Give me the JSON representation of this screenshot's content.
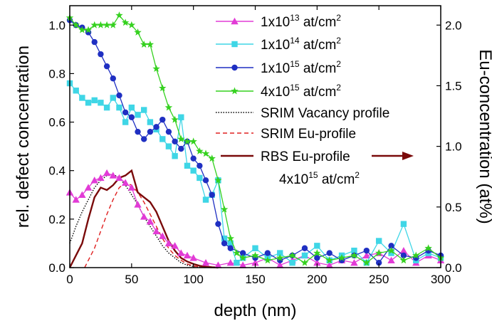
{
  "chart_data": {
    "type": "scatter",
    "xlabel": "depth (nm)",
    "ylabel": "rel. defect concentration",
    "y2label": "Eu-concentration (at%)",
    "xlim": [
      0,
      300
    ],
    "ylim": [
      0,
      1.08
    ],
    "y2lim": [
      0,
      2.16
    ],
    "xticks": [
      "0",
      "50",
      "100",
      "150",
      "200",
      "250",
      "300"
    ],
    "yticks": [
      "0.0",
      "0.2",
      "0.4",
      "0.6",
      "0.8",
      "1.0"
    ],
    "y2ticks": [
      "0.0",
      "0.5",
      "1.0",
      "1.5",
      "2.0"
    ],
    "legend_position": "top-right",
    "series": [
      {
        "name_main": "1x10",
        "name_exp": "13",
        "name_unit": " at/cm",
        "name_unit_exp": "2",
        "color": "#e23bd6",
        "marker": "triangle",
        "x": [
          0,
          5,
          10,
          15,
          20,
          25,
          30,
          35,
          40,
          45,
          50,
          55,
          60,
          65,
          70,
          75,
          80,
          85,
          90,
          95,
          100,
          110,
          120,
          130,
          140,
          150,
          160,
          170,
          180,
          190,
          200,
          210,
          220,
          230,
          240,
          250,
          260,
          270,
          280,
          290,
          300
        ],
        "y": [
          0.31,
          0.28,
          0.3,
          0.33,
          0.36,
          0.37,
          0.39,
          0.38,
          0.37,
          0.35,
          0.33,
          0.26,
          0.21,
          0.19,
          0.15,
          0.13,
          0.1,
          0.09,
          0.06,
          0.05,
          0.04,
          0.02,
          0.01,
          0.02,
          0.01,
          0.02,
          0.04,
          0.01,
          0.03,
          0.05,
          0.02,
          0.01,
          0.03,
          0.02,
          0.05,
          0.06,
          0.03,
          0.07,
          0.02,
          0.05,
          0.03
        ]
      },
      {
        "name_main": "1x10",
        "name_exp": "14",
        "name_unit": " at/cm",
        "name_unit_exp": "2",
        "color": "#3fd6e6",
        "marker": "square",
        "x": [
          0,
          5,
          10,
          15,
          20,
          25,
          30,
          35,
          40,
          45,
          50,
          55,
          60,
          65,
          70,
          75,
          80,
          85,
          90,
          95,
          100,
          105,
          110,
          115,
          120,
          125,
          130,
          135,
          140,
          150,
          160,
          170,
          180,
          190,
          200,
          210,
          220,
          230,
          240,
          250,
          260,
          270,
          280,
          290,
          300
        ],
        "y": [
          0.76,
          0.73,
          0.7,
          0.68,
          0.69,
          0.68,
          0.66,
          0.7,
          0.66,
          0.6,
          0.66,
          0.63,
          0.65,
          0.6,
          0.57,
          0.53,
          0.5,
          0.46,
          0.62,
          0.42,
          0.4,
          0.37,
          0.28,
          0.3,
          0.36,
          0.12,
          0.1,
          0.02,
          0.04,
          0.08,
          0.04,
          0.06,
          0.02,
          0.05,
          0.09,
          0.03,
          0.05,
          0.07,
          0.02,
          0.11,
          0.06,
          0.18,
          0.03,
          0.06,
          0.04
        ]
      },
      {
        "name_main": "1x10",
        "name_exp": "15",
        "name_unit": " at/cm",
        "name_unit_exp": "2",
        "color": "#1f2fc2",
        "marker": "circle",
        "x": [
          0,
          5,
          10,
          15,
          20,
          25,
          30,
          35,
          40,
          45,
          50,
          55,
          60,
          65,
          70,
          75,
          80,
          85,
          90,
          95,
          100,
          105,
          110,
          115,
          120,
          125,
          130,
          140,
          150,
          160,
          170,
          180,
          190,
          200,
          210,
          220,
          230,
          240,
          250,
          260,
          270,
          280,
          290,
          300
        ],
        "y": [
          1.02,
          1.0,
          0.99,
          0.97,
          0.93,
          0.88,
          0.83,
          0.78,
          0.71,
          0.64,
          0.62,
          0.56,
          0.53,
          0.56,
          0.58,
          0.61,
          0.56,
          0.52,
          0.49,
          0.52,
          0.45,
          0.42,
          0.36,
          0.3,
          0.18,
          0.1,
          0.08,
          0.06,
          0.04,
          0.06,
          0.03,
          0.05,
          0.08,
          0.04,
          0.06,
          0.03,
          0.05,
          0.07,
          0.02,
          0.09,
          0.05,
          0.04,
          0.07,
          0.05
        ]
      },
      {
        "name_main": "4x10",
        "name_exp": "15",
        "name_unit": " at/cm",
        "name_unit_exp": "2",
        "color": "#35d11f",
        "marker": "star",
        "x": [
          0,
          5,
          10,
          15,
          20,
          25,
          30,
          35,
          40,
          45,
          50,
          55,
          60,
          65,
          70,
          75,
          80,
          85,
          90,
          95,
          100,
          105,
          110,
          115,
          120,
          125,
          130,
          135,
          140,
          150,
          160,
          170,
          180,
          190,
          200,
          210,
          220,
          230,
          240,
          250,
          260,
          270,
          280,
          290,
          300
        ],
        "y": [
          1.03,
          1.0,
          0.98,
          0.98,
          1.0,
          1.0,
          1.0,
          1.0,
          1.04,
          1.01,
          1.0,
          0.97,
          0.92,
          0.92,
          0.82,
          0.74,
          0.66,
          0.61,
          0.53,
          0.52,
          0.52,
          0.48,
          0.47,
          0.45,
          0.36,
          0.24,
          0.12,
          0.06,
          0.04,
          0.05,
          0.03,
          0.04,
          0.05,
          0.02,
          0.06,
          0.03,
          0.04,
          0.05,
          0.02,
          0.06,
          0.07,
          0.03,
          0.05,
          0.08,
          0.04
        ]
      },
      {
        "name": "SRIM Vacancy profile",
        "color": "#000000",
        "style": "dotted",
        "x": [
          0,
          5,
          10,
          15,
          20,
          25,
          30,
          35,
          40,
          45,
          50,
          55,
          60,
          65,
          70,
          75,
          80,
          85,
          90,
          95,
          100,
          105,
          110
        ],
        "y": [
          0.1,
          0.17,
          0.23,
          0.28,
          0.33,
          0.36,
          0.38,
          0.385,
          0.37,
          0.34,
          0.3,
          0.26,
          0.21,
          0.17,
          0.13,
          0.09,
          0.06,
          0.04,
          0.02,
          0.01,
          0.005,
          0.002,
          0.0
        ]
      },
      {
        "name": "SRIM Eu-profile",
        "color": "#e02020",
        "style": "dashed",
        "x": [
          12,
          15,
          20,
          25,
          30,
          35,
          40,
          45,
          50,
          55,
          60,
          65,
          70,
          75,
          80,
          85,
          90,
          95,
          100,
          105,
          110,
          115
        ],
        "y": [
          0.0,
          0.03,
          0.08,
          0.15,
          0.22,
          0.28,
          0.33,
          0.35,
          0.34,
          0.31,
          0.27,
          0.22,
          0.17,
          0.12,
          0.08,
          0.05,
          0.03,
          0.015,
          0.007,
          0.003,
          0.001,
          0.0
        ]
      },
      {
        "name": "RBS Eu-profile",
        "name_line2_main": "4x10",
        "name_line2_exp": "15",
        "name_line2_unit": " at/cm",
        "name_line2_unit_exp": "2",
        "color": "#7a0a0a",
        "style": "solid",
        "axis": "right",
        "x": [
          0,
          5,
          10,
          15,
          20,
          25,
          30,
          35,
          40,
          45,
          50,
          55,
          60,
          65,
          70,
          75,
          80,
          85,
          90,
          95,
          100,
          105,
          110,
          115,
          120
        ],
        "y": [
          0.0,
          0.1,
          0.2,
          0.4,
          0.58,
          0.66,
          0.64,
          0.68,
          0.74,
          0.76,
          0.8,
          0.62,
          0.58,
          0.54,
          0.46,
          0.34,
          0.22,
          0.14,
          0.08,
          0.05,
          0.03,
          0.015,
          0.008,
          0.003,
          0.0
        ]
      }
    ]
  }
}
